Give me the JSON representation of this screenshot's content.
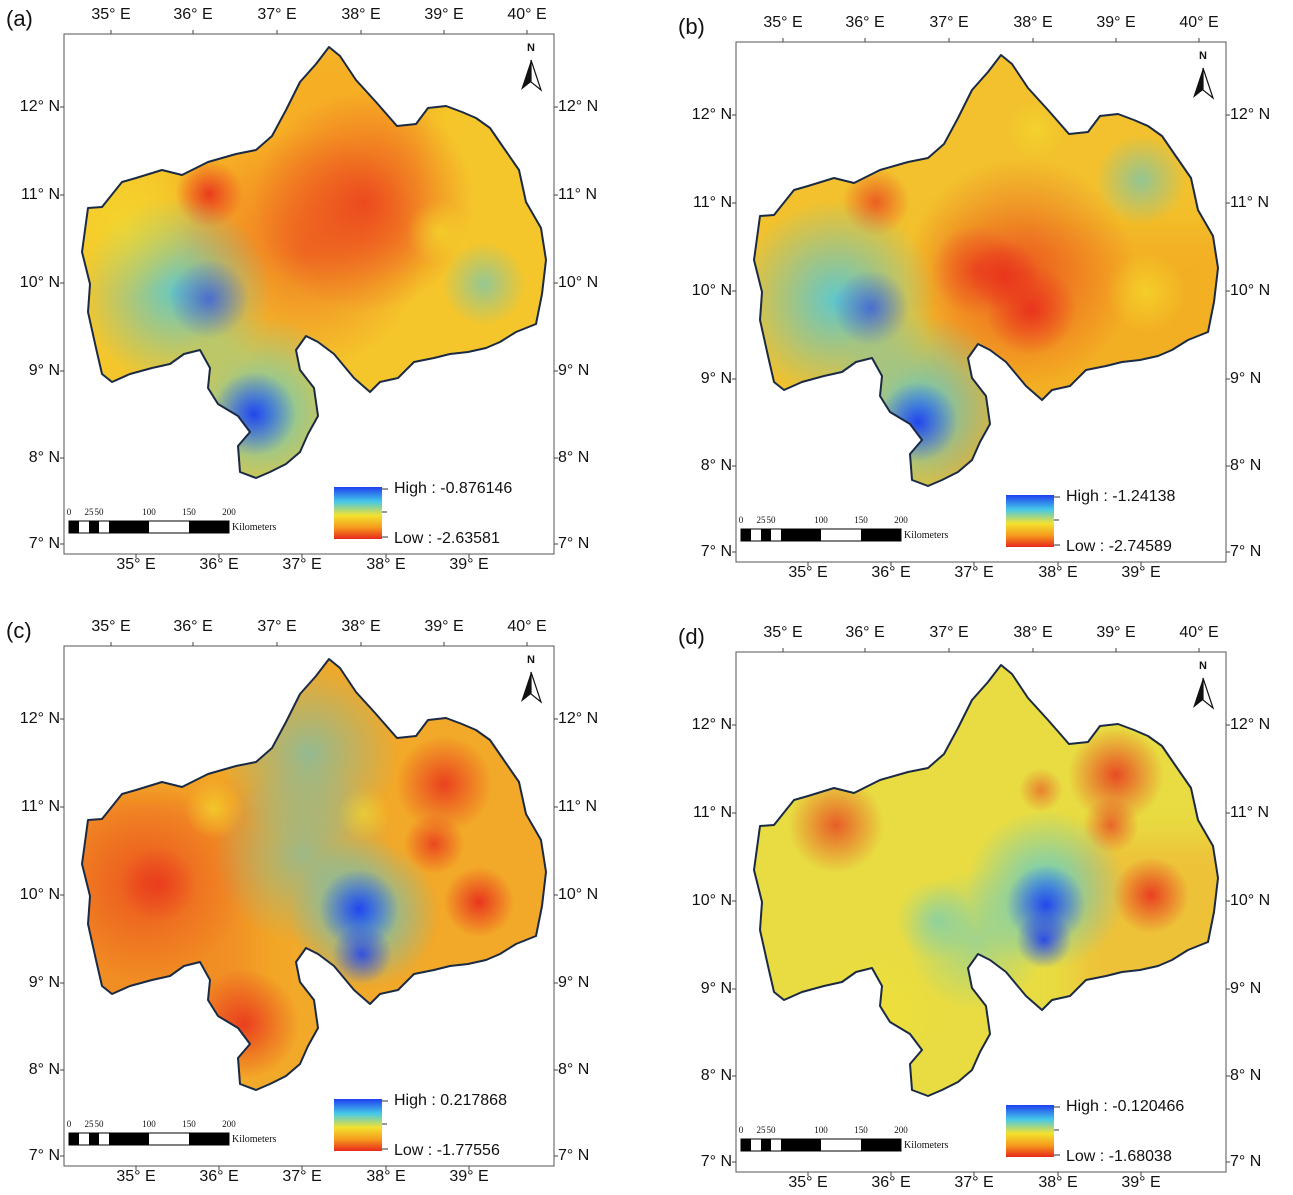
{
  "palette": {
    "red": "#e8281c",
    "orange": "#f59a1d",
    "yellow": "#f4e22e",
    "cyan": "#45c9e8",
    "blue": "#1f3ff0",
    "boundary": "#1a2a44"
  },
  "north_arrow_label": "N",
  "panels": [
    {
      "label": "(a)",
      "lon_ticks_top": [
        "35° E",
        "36° E",
        "37° E",
        "38° E",
        "39° E",
        "40° E"
      ],
      "lon_ticks_bottom": [
        "35° E",
        "36° E",
        "37° E",
        "38° E",
        "39° E"
      ],
      "lat_ticks_left": [
        "12° N",
        "11° N",
        "10° N",
        "9° N",
        "8° N",
        "7° N"
      ],
      "lat_ticks_right": [
        "12° N",
        "11° N",
        "10° N",
        "9° N",
        "8° N",
        "7° N"
      ],
      "legend": {
        "high": "High : -0.876146",
        "low": "Low : -2.63581"
      },
      "scale_bar": {
        "ticks": [
          "0",
          "25",
          "50",
          "100",
          "150",
          "200"
        ],
        "unit": "Kilometers"
      }
    },
    {
      "label": "(b)",
      "lon_ticks_top": [
        "35° E",
        "36° E",
        "37° E",
        "38° E",
        "39° E",
        "40° E"
      ],
      "lon_ticks_bottom": [
        "35° E",
        "36° E",
        "37° E",
        "38° E",
        "39° E"
      ],
      "lat_ticks_left": [
        "12° N",
        "11° N",
        "10° N",
        "9° N",
        "8° N",
        "7° N"
      ],
      "lat_ticks_right": [
        "12° N",
        "11° N",
        "10° N",
        "9° N",
        "8° N",
        "7° N"
      ],
      "legend": {
        "high": "High : -1.24138",
        "low": "Low : -2.74589"
      },
      "scale_bar": {
        "ticks": [
          "0",
          "25",
          "50",
          "100",
          "150",
          "200"
        ],
        "unit": "Kilometers"
      }
    },
    {
      "label": "(c)",
      "lon_ticks_top": [
        "35° E",
        "36° E",
        "37° E",
        "38° E",
        "39° E",
        "40° E"
      ],
      "lon_ticks_bottom": [
        "35° E",
        "36° E",
        "37° E",
        "38° E",
        "39° E"
      ],
      "lat_ticks_left": [
        "12° N",
        "11° N",
        "10° N",
        "9° N",
        "8° N",
        "7° N"
      ],
      "lat_ticks_right": [
        "12° N",
        "11° N",
        "10° N",
        "9° N",
        "8° N",
        "7° N"
      ],
      "legend": {
        "high": "High : 0.217868",
        "low": "Low : -1.77556"
      },
      "scale_bar": {
        "ticks": [
          "0",
          "25",
          "50",
          "100",
          "150",
          "200"
        ],
        "unit": "Kilometers"
      }
    },
    {
      "label": "(d)",
      "lon_ticks_top": [
        "35° E",
        "36° E",
        "37° E",
        "38° E",
        "39° E",
        "40° E"
      ],
      "lon_ticks_bottom": [
        "35° E",
        "36° E",
        "37° E",
        "38° E",
        "39° E"
      ],
      "lat_ticks_left": [
        "12° N",
        "11° N",
        "10° N",
        "9° N",
        "8° N",
        "7° N"
      ],
      "lat_ticks_right": [
        "12° N",
        "11° N",
        "10° N",
        "9° N",
        "8° N",
        "7° N"
      ],
      "legend": {
        "high": "High : -0.120466",
        "low": "Low : -1.68038"
      },
      "scale_bar": {
        "ticks": [
          "0",
          "25",
          "50",
          "100",
          "150",
          "200"
        ],
        "unit": "Kilometers"
      }
    }
  ]
}
